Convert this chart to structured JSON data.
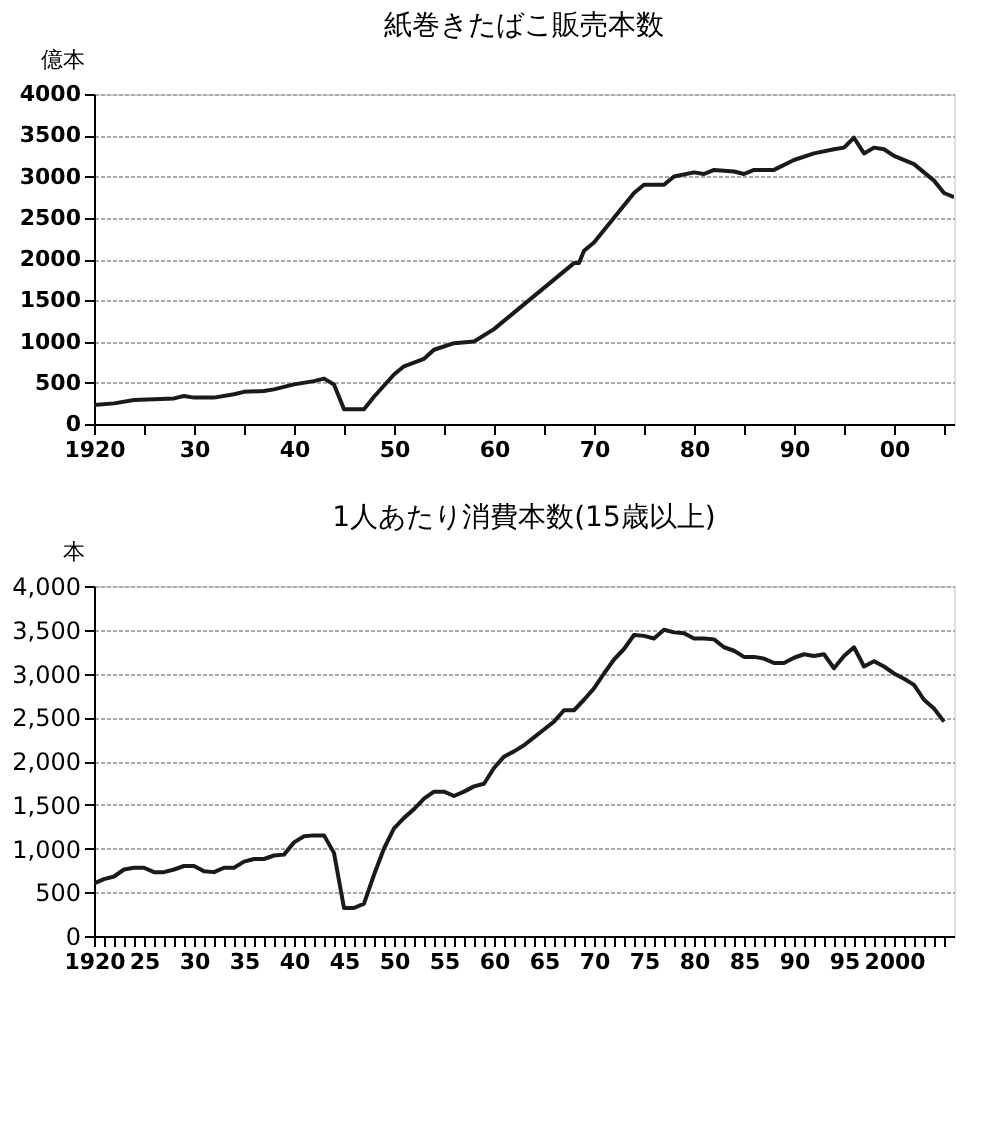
{
  "chart_data": [
    {
      "type": "line",
      "title": "紙巻きたばこ販売本数",
      "ylabel": "億本",
      "color": "#1a1a1a",
      "x": [
        1920,
        1922,
        1924,
        1926,
        1928,
        1929,
        1930,
        1932,
        1934,
        1935,
        1937,
        1938,
        1940,
        1942,
        1943,
        1944,
        1945,
        1947,
        1948,
        1950,
        1951,
        1953,
        1954,
        1956,
        1958,
        1960,
        1962,
        1964,
        1966,
        1968,
        1968.5,
        1969,
        1970,
        1972,
        1974,
        1975,
        1977,
        1978,
        1980,
        1981,
        1982,
        1984,
        1985,
        1986,
        1988,
        1990,
        1992,
        1994,
        1995,
        1996,
        1997,
        1998,
        1999,
        2000,
        2002,
        2004,
        2005,
        2006
      ],
      "values": [
        230,
        250,
        290,
        300,
        310,
        340,
        320,
        320,
        360,
        390,
        400,
        420,
        480,
        520,
        550,
        480,
        180,
        180,
        330,
        600,
        700,
        790,
        900,
        980,
        1000,
        1150,
        1350,
        1550,
        1750,
        1950,
        1950,
        2100,
        2200,
        2500,
        2800,
        2900,
        2900,
        3000,
        3050,
        3030,
        3080,
        3060,
        3030,
        3080,
        3080,
        3200,
        3280,
        3330,
        3350,
        3470,
        3280,
        3350,
        3330,
        3250,
        3150,
        2950,
        2800,
        2750
      ],
      "xlim": [
        1920,
        2006
      ],
      "xticks": [
        {
          "value": 1920,
          "label": "1920"
        },
        {
          "value": 1925,
          "label": null
        },
        {
          "value": 1930,
          "label": "30"
        },
        {
          "value": 1935,
          "label": null
        },
        {
          "value": 1940,
          "label": "40"
        },
        {
          "value": 1945,
          "label": null
        },
        {
          "value": 1950,
          "label": "50"
        },
        {
          "value": 1955,
          "label": null
        },
        {
          "value": 1960,
          "label": "60"
        },
        {
          "value": 1965,
          "label": null
        },
        {
          "value": 1970,
          "label": "70"
        },
        {
          "value": 1975,
          "label": null
        },
        {
          "value": 1980,
          "label": "80"
        },
        {
          "value": 1985,
          "label": null
        },
        {
          "value": 1990,
          "label": "90"
        },
        {
          "value": 1995,
          "label": null
        },
        {
          "value": 2000,
          "label": "00"
        },
        {
          "value": 2005,
          "label": null
        }
      ],
      "ylim": [
        0,
        4000
      ],
      "yticks": [
        0,
        500,
        1000,
        1500,
        2000,
        2500,
        3000,
        3500,
        4000
      ],
      "grid": "y",
      "marker": "none",
      "line_style": "solid"
    },
    {
      "type": "line",
      "title": "1人あたり消費本数(15歳以上)",
      "ylabel": "本",
      "color": "#1a1a1a",
      "x": [
        1920,
        1921,
        1922,
        1923,
        1924,
        1925,
        1926,
        1927,
        1928,
        1929,
        1930,
        1931,
        1932,
        1933,
        1934,
        1935,
        1936,
        1937,
        1938,
        1939,
        1940,
        1941,
        1942,
        1943,
        1944,
        1945,
        1946,
        1947,
        1948,
        1949,
        1950,
        1951,
        1952,
        1953,
        1954,
        1955,
        1956,
        1957,
        1958,
        1959,
        1960,
        1961,
        1962,
        1963,
        1964,
        1965,
        1966,
        1967,
        1968,
        1969,
        1970,
        1971,
        1972,
        1973,
        1974,
        1975,
        1976,
        1977,
        1978,
        1979,
        1980,
        1981,
        1982,
        1983,
        1984,
        1985,
        1986,
        1987,
        1988,
        1989,
        1990,
        1991,
        1992,
        1993,
        1994,
        1995,
        1996,
        1997,
        1998,
        1999,
        2000,
        2001,
        2002,
        2003,
        2004,
        2005
      ],
      "values": [
        600,
        650,
        680,
        760,
        780,
        780,
        730,
        730,
        760,
        800,
        800,
        740,
        730,
        780,
        780,
        850,
        880,
        880,
        920,
        930,
        1070,
        1140,
        1150,
        1150,
        950,
        320,
        320,
        370,
        700,
        1000,
        1230,
        1350,
        1450,
        1570,
        1650,
        1650,
        1600,
        1650,
        1710,
        1740,
        1920,
        2050,
        2110,
        2180,
        2270,
        2360,
        2450,
        2580,
        2580,
        2700,
        2830,
        3000,
        3160,
        3280,
        3440,
        3430,
        3400,
        3500,
        3470,
        3460,
        3400,
        3400,
        3390,
        3300,
        3260,
        3190,
        3190,
        3170,
        3120,
        3120,
        3180,
        3220,
        3200,
        3220,
        3060,
        3200,
        3300,
        3080,
        3140,
        3080,
        3000,
        2940,
        2870,
        2700,
        2600,
        2450
      ],
      "xlim": [
        1920,
        2006
      ],
      "xticks": [
        {
          "value": 1920,
          "label": "1920"
        },
        {
          "value": 1921,
          "label": null
        },
        {
          "value": 1922,
          "label": null
        },
        {
          "value": 1923,
          "label": null
        },
        {
          "value": 1924,
          "label": null
        },
        {
          "value": 1925,
          "label": "25"
        },
        {
          "value": 1926,
          "label": null
        },
        {
          "value": 1927,
          "label": null
        },
        {
          "value": 1928,
          "label": null
        },
        {
          "value": 1929,
          "label": null
        },
        {
          "value": 1930,
          "label": "30"
        },
        {
          "value": 1931,
          "label": null
        },
        {
          "value": 1932,
          "label": null
        },
        {
          "value": 1933,
          "label": null
        },
        {
          "value": 1934,
          "label": null
        },
        {
          "value": 1935,
          "label": "35"
        },
        {
          "value": 1936,
          "label": null
        },
        {
          "value": 1937,
          "label": null
        },
        {
          "value": 1938,
          "label": null
        },
        {
          "value": 1939,
          "label": null
        },
        {
          "value": 1940,
          "label": "40"
        },
        {
          "value": 1941,
          "label": null
        },
        {
          "value": 1942,
          "label": null
        },
        {
          "value": 1943,
          "label": null
        },
        {
          "value": 1944,
          "label": null
        },
        {
          "value": 1945,
          "label": "45"
        },
        {
          "value": 1946,
          "label": null
        },
        {
          "value": 1947,
          "label": null
        },
        {
          "value": 1948,
          "label": null
        },
        {
          "value": 1949,
          "label": null
        },
        {
          "value": 1950,
          "label": "50"
        },
        {
          "value": 1951,
          "label": null
        },
        {
          "value": 1952,
          "label": null
        },
        {
          "value": 1953,
          "label": null
        },
        {
          "value": 1954,
          "label": null
        },
        {
          "value": 1955,
          "label": "55"
        },
        {
          "value": 1956,
          "label": null
        },
        {
          "value": 1957,
          "label": null
        },
        {
          "value": 1958,
          "label": null
        },
        {
          "value": 1959,
          "label": null
        },
        {
          "value": 1960,
          "label": "60"
        },
        {
          "value": 1961,
          "label": null
        },
        {
          "value": 1962,
          "label": null
        },
        {
          "value": 1963,
          "label": null
        },
        {
          "value": 1964,
          "label": null
        },
        {
          "value": 1965,
          "label": "65"
        },
        {
          "value": 1966,
          "label": null
        },
        {
          "value": 1967,
          "label": null
        },
        {
          "value": 1968,
          "label": null
        },
        {
          "value": 1969,
          "label": null
        },
        {
          "value": 1970,
          "label": "70"
        },
        {
          "value": 1971,
          "label": null
        },
        {
          "value": 1972,
          "label": null
        },
        {
          "value": 1973,
          "label": null
        },
        {
          "value": 1974,
          "label": null
        },
        {
          "value": 1975,
          "label": "75"
        },
        {
          "value": 1976,
          "label": null
        },
        {
          "value": 1977,
          "label": null
        },
        {
          "value": 1978,
          "label": null
        },
        {
          "value": 1979,
          "label": null
        },
        {
          "value": 1980,
          "label": "80"
        },
        {
          "value": 1981,
          "label": null
        },
        {
          "value": 1982,
          "label": null
        },
        {
          "value": 1983,
          "label": null
        },
        {
          "value": 1984,
          "label": null
        },
        {
          "value": 1985,
          "label": "85"
        },
        {
          "value": 1986,
          "label": null
        },
        {
          "value": 1987,
          "label": null
        },
        {
          "value": 1988,
          "label": null
        },
        {
          "value": 1989,
          "label": null
        },
        {
          "value": 1990,
          "label": "90"
        },
        {
          "value": 1991,
          "label": null
        },
        {
          "value": 1992,
          "label": null
        },
        {
          "value": 1993,
          "label": null
        },
        {
          "value": 1994,
          "label": null
        },
        {
          "value": 1995,
          "label": "95"
        },
        {
          "value": 1996,
          "label": null
        },
        {
          "value": 1997,
          "label": null
        },
        {
          "value": 1998,
          "label": null
        },
        {
          "value": 1999,
          "label": null
        },
        {
          "value": 2000,
          "label": "2000"
        },
        {
          "value": 2001,
          "label": null
        },
        {
          "value": 2002,
          "label": null
        },
        {
          "value": 2003,
          "label": null
        },
        {
          "value": 2004,
          "label": null
        },
        {
          "value": 2005,
          "label": null
        }
      ],
      "ylim": [
        0,
        4000
      ],
      "yticks": [
        0,
        {
          "value": 500,
          "label": "500"
        },
        {
          "value": 1000,
          "label": "1,000"
        },
        {
          "value": 1500,
          "label": "1,500"
        },
        {
          "value": 2000,
          "label": "2,000"
        },
        {
          "value": 2500,
          "label": "2,500"
        },
        {
          "value": 3000,
          "label": "3,000"
        },
        {
          "value": 3500,
          "label": "3,500"
        },
        {
          "value": 4000,
          "label": "4,000"
        }
      ],
      "grid": "y",
      "marker": "none",
      "line_style": "solid"
    }
  ]
}
